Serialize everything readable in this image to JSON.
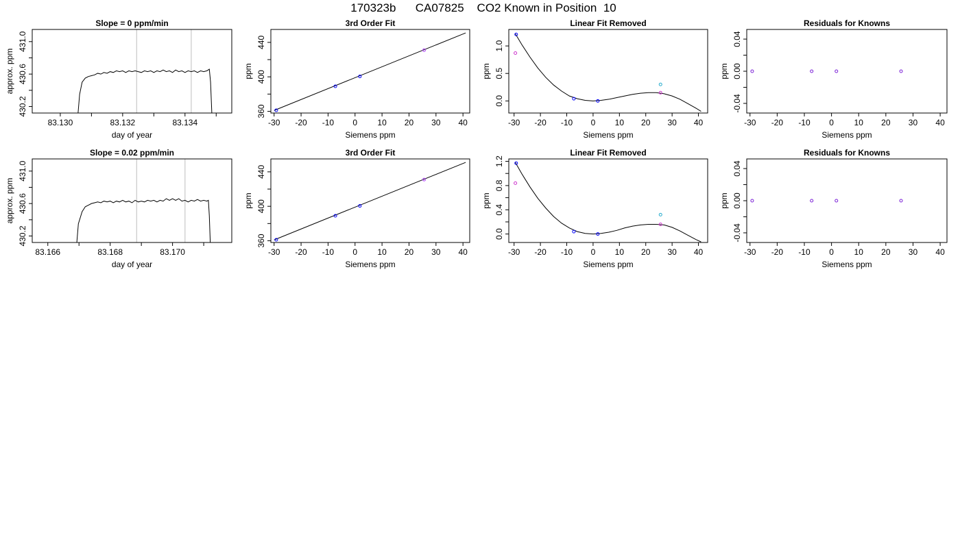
{
  "page_title": "170323b      CA07825    CO2 Known in Position  10",
  "chart_data": [
    {
      "type": "line",
      "title": "Slope =  0  ppm/min",
      "xlabel": "day of year",
      "ylabel": "approx. ppm",
      "xlim": [
        83.1291,
        83.1355
      ],
      "ylim": [
        430.12,
        431.15
      ],
      "xticks": [
        83.13,
        83.131,
        83.132,
        83.133,
        83.134,
        83.135
      ],
      "xtick_labels": [
        "83.130",
        "",
        "83.132",
        "",
        "83.134",
        ""
      ],
      "yticks": [
        430.2,
        430.4,
        430.6,
        430.8,
        431.0
      ],
      "ytick_labels": [
        "430.2",
        "",
        "430.6",
        "",
        "431.0"
      ],
      "vlines": [
        83.13245,
        83.1342
      ],
      "series": [
        {
          "values": [
            [
              83.13057,
              430.12
            ],
            [
              83.13062,
              430.35
            ],
            [
              83.1307,
              430.5
            ],
            [
              83.1308,
              430.55
            ],
            [
              83.1309,
              430.57
            ],
            [
              83.131,
              430.58
            ],
            [
              83.1311,
              430.59
            ],
            [
              83.1312,
              430.61
            ],
            [
              83.1313,
              430.6
            ],
            [
              83.1314,
              430.62
            ],
            [
              83.1315,
              430.61
            ],
            [
              83.1316,
              430.63
            ],
            [
              83.1317,
              430.62
            ],
            [
              83.1318,
              430.64
            ],
            [
              83.1319,
              430.63
            ],
            [
              83.132,
              430.64
            ],
            [
              83.1321,
              430.62
            ],
            [
              83.1322,
              430.64
            ],
            [
              83.1323,
              430.63
            ],
            [
              83.1324,
              430.64
            ],
            [
              83.1325,
              430.63
            ],
            [
              83.1326,
              430.62
            ],
            [
              83.1327,
              430.64
            ],
            [
              83.1328,
              430.63
            ],
            [
              83.1329,
              430.64
            ],
            [
              83.133,
              430.62
            ],
            [
              83.1331,
              430.64
            ],
            [
              83.1332,
              430.63
            ],
            [
              83.1333,
              430.65
            ],
            [
              83.1334,
              430.63
            ],
            [
              83.1335,
              430.64
            ],
            [
              83.1336,
              430.62
            ],
            [
              83.1337,
              430.65
            ],
            [
              83.1338,
              430.63
            ],
            [
              83.1339,
              430.64
            ],
            [
              83.134,
              430.62
            ],
            [
              83.1341,
              430.64
            ],
            [
              83.1342,
              430.63
            ],
            [
              83.1343,
              430.64
            ],
            [
              83.1344,
              430.62
            ],
            [
              83.1345,
              430.64
            ],
            [
              83.1346,
              430.63
            ],
            [
              83.1347,
              430.64
            ],
            [
              83.13478,
              430.66
            ],
            [
              83.13482,
              430.5
            ],
            [
              83.13486,
              430.12
            ]
          ]
        }
      ]
    },
    {
      "type": "scatter",
      "title": "3rd Order Fit",
      "xlabel": "Siemens ppm",
      "ylabel": "ppm",
      "xlim": [
        -31.2,
        42.5
      ],
      "ylim": [
        358,
        455
      ],
      "xticks": [
        -30,
        -20,
        -10,
        0,
        10,
        20,
        30,
        40
      ],
      "xtick_labels": [
        "-30",
        "-20",
        "-10",
        "0",
        "10",
        "20",
        "30",
        "40"
      ],
      "yticks": [
        360,
        380,
        400,
        420,
        440
      ],
      "ytick_labels": [
        "360",
        "",
        "400",
        "",
        "440"
      ],
      "curve": {
        "x": [
          -30,
          41
        ],
        "y": [
          361,
          451
        ]
      },
      "series": [
        {
          "color": "#0000ff",
          "x": [
            -29.2,
            -7.3,
            1.8
          ],
          "y": [
            361.2,
            389.0,
            400.5
          ]
        },
        {
          "color": "#b040ff",
          "x": [
            25.6
          ],
          "y": [
            431.0
          ]
        }
      ]
    },
    {
      "type": "scatter",
      "title": "Linear Fit Removed",
      "xlabel": "Siemens ppm",
      "ylabel": "ppm",
      "xlim": [
        -32.0,
        43.5
      ],
      "ylim": [
        -0.22,
        1.3
      ],
      "xticks": [
        -30,
        -20,
        -10,
        0,
        10,
        20,
        30,
        40
      ],
      "xtick_labels": [
        "-30",
        "-20",
        "-10",
        "0",
        "10",
        "20",
        "30",
        "40"
      ],
      "yticks": [
        0.0,
        0.5,
        1.0
      ],
      "ytick_labels": [
        "0.0",
        "0.5",
        "1.0"
      ],
      "curve": {
        "x": [
          -29.5,
          -27,
          -24,
          -21,
          -18,
          -15,
          -12,
          -9,
          -6,
          -3,
          0,
          3,
          6,
          9,
          12,
          15,
          18,
          21,
          24,
          27,
          30,
          33,
          36,
          39,
          41
        ],
        "y": [
          1.22,
          1.02,
          0.8,
          0.6,
          0.43,
          0.29,
          0.18,
          0.09,
          0.04,
          0.01,
          0.0,
          0.01,
          0.03,
          0.06,
          0.09,
          0.12,
          0.14,
          0.15,
          0.15,
          0.13,
          0.09,
          0.03,
          -0.05,
          -0.13,
          -0.19
        ]
      },
      "series": [
        {
          "color": "#0000ff",
          "x": [
            -29.2,
            -7.3,
            1.8
          ],
          "y": [
            1.21,
            0.04,
            0.0
          ]
        },
        {
          "color": "#cc33cc",
          "x": [
            -29.5,
            25.6
          ],
          "y": [
            0.87,
            0.15
          ]
        },
        {
          "color": "#22aacc",
          "x": [
            25.6
          ],
          "y": [
            0.3
          ]
        }
      ]
    },
    {
      "type": "scatter",
      "title": "Residuals for Knowns",
      "xlabel": "Siemens ppm",
      "ylabel": "ppm",
      "xlim": [
        -31.2,
        42.5
      ],
      "ylim": [
        -0.052,
        0.052
      ],
      "xticks": [
        -30,
        -20,
        -10,
        0,
        10,
        20,
        30,
        40
      ],
      "xtick_labels": [
        "-30",
        "-20",
        "-10",
        "0",
        "10",
        "20",
        "30",
        "40"
      ],
      "yticks": [
        -0.04,
        -0.02,
        0.0,
        0.02,
        0.04
      ],
      "ytick_labels": [
        "-0.04",
        "",
        "0.00",
        "",
        "0.04"
      ],
      "series": [
        {
          "color": "#7a1fd6",
          "x": [
            -29.2,
            -7.3,
            1.8,
            25.6
          ],
          "y": [
            0,
            0,
            0,
            0
          ]
        }
      ]
    },
    {
      "type": "line",
      "title": "Slope =  0.02  ppm/min",
      "xlabel": "day of year",
      "ylabel": "approx. ppm",
      "xlim": [
        83.1655,
        83.1719
      ],
      "ylim": [
        430.12,
        431.15
      ],
      "xticks": [
        83.166,
        83.167,
        83.168,
        83.169,
        83.17,
        83.171
      ],
      "xtick_labels": [
        "83.166",
        "",
        "83.168",
        "",
        "83.170",
        ""
      ],
      "yticks": [
        430.2,
        430.4,
        430.6,
        430.8,
        431.0
      ],
      "ytick_labels": [
        "430.2",
        "",
        "430.6",
        "",
        "431.0"
      ],
      "vlines": [
        83.16885,
        83.1704
      ],
      "series": [
        {
          "values": [
            [
              83.16693,
              430.12
            ],
            [
              83.16698,
              430.35
            ],
            [
              83.1671,
              430.5
            ],
            [
              83.1672,
              430.56
            ],
            [
              83.1673,
              430.58
            ],
            [
              83.1674,
              430.6
            ],
            [
              83.1675,
              430.61
            ],
            [
              83.1676,
              430.62
            ],
            [
              83.1677,
              430.61
            ],
            [
              83.1678,
              430.63
            ],
            [
              83.1679,
              430.62
            ],
            [
              83.168,
              430.63
            ],
            [
              83.1681,
              430.61
            ],
            [
              83.1682,
              430.63
            ],
            [
              83.1683,
              430.62
            ],
            [
              83.1684,
              430.64
            ],
            [
              83.1685,
              430.62
            ],
            [
              83.1686,
              430.63
            ],
            [
              83.1687,
              430.61
            ],
            [
              83.1688,
              430.64
            ],
            [
              83.1689,
              430.62
            ],
            [
              83.169,
              430.63
            ],
            [
              83.1691,
              430.62
            ],
            [
              83.1692,
              430.64
            ],
            [
              83.1693,
              430.63
            ],
            [
              83.1694,
              430.64
            ],
            [
              83.1695,
              430.62
            ],
            [
              83.1696,
              430.64
            ],
            [
              83.1697,
              430.63
            ],
            [
              83.1698,
              430.66
            ],
            [
              83.1699,
              430.64
            ],
            [
              83.17,
              430.66
            ],
            [
              83.1701,
              430.64
            ],
            [
              83.1702,
              430.66
            ],
            [
              83.1703,
              430.63
            ],
            [
              83.1704,
              430.64
            ],
            [
              83.1705,
              430.62
            ],
            [
              83.1706,
              430.64
            ],
            [
              83.1707,
              430.63
            ],
            [
              83.1708,
              430.65
            ],
            [
              83.1709,
              430.63
            ],
            [
              83.171,
              430.64
            ],
            [
              83.1711,
              430.63
            ],
            [
              83.17115,
              430.64
            ],
            [
              83.17118,
              430.45
            ],
            [
              83.17121,
              430.12
            ]
          ]
        }
      ]
    },
    {
      "type": "scatter",
      "title": "3rd Order Fit",
      "xlabel": "Siemens ppm",
      "ylabel": "ppm",
      "xlim": [
        -31.2,
        42.5
      ],
      "ylim": [
        358,
        455
      ],
      "xticks": [
        -30,
        -20,
        -10,
        0,
        10,
        20,
        30,
        40
      ],
      "xtick_labels": [
        "-30",
        "-20",
        "-10",
        "0",
        "10",
        "20",
        "30",
        "40"
      ],
      "yticks": [
        360,
        380,
        400,
        420,
        440
      ],
      "ytick_labels": [
        "360",
        "",
        "400",
        "",
        "440"
      ],
      "curve": {
        "x": [
          -30,
          41
        ],
        "y": [
          361,
          451
        ]
      },
      "series": [
        {
          "color": "#0000ff",
          "x": [
            -29.2,
            -7.3,
            1.8
          ],
          "y": [
            361.2,
            389.0,
            400.5
          ]
        },
        {
          "color": "#b040ff",
          "x": [
            25.6
          ],
          "y": [
            431.0
          ]
        }
      ]
    },
    {
      "type": "scatter",
      "title": "Linear Fit Removed",
      "xlabel": "Siemens ppm",
      "ylabel": "ppm",
      "xlim": [
        -32.0,
        43.5
      ],
      "ylim": [
        -0.14,
        1.24
      ],
      "xticks": [
        -30,
        -20,
        -10,
        0,
        10,
        20,
        30,
        40
      ],
      "xtick_labels": [
        "-30",
        "-20",
        "-10",
        "0",
        "10",
        "20",
        "30",
        "40"
      ],
      "yticks": [
        0.0,
        0.2,
        0.4,
        0.6,
        0.8,
        1.0,
        1.2
      ],
      "ytick_labels": [
        "0.0",
        "0.4",
        "0.8",
        "1.2"
      ],
      "ytick_label_values": [
        0.0,
        0.4,
        0.8,
        1.2
      ],
      "curve": {
        "x": [
          -29.5,
          -27,
          -24,
          -21,
          -18,
          -15,
          -12,
          -9,
          -6,
          -3,
          0,
          3,
          6,
          9,
          12,
          15,
          18,
          21,
          24,
          27,
          30,
          33,
          36,
          39,
          41
        ],
        "y": [
          1.18,
          0.99,
          0.78,
          0.59,
          0.43,
          0.29,
          0.18,
          0.1,
          0.04,
          0.01,
          0.0,
          0.01,
          0.03,
          0.06,
          0.1,
          0.13,
          0.15,
          0.16,
          0.16,
          0.15,
          0.11,
          0.05,
          -0.02,
          -0.09,
          -0.13
        ]
      },
      "series": [
        {
          "color": "#0000ff",
          "x": [
            -29.2,
            -7.3,
            1.8
          ],
          "y": [
            1.17,
            0.04,
            0.0
          ]
        },
        {
          "color": "#cc33cc",
          "x": [
            -29.5,
            25.6
          ],
          "y": [
            0.84,
            0.16
          ]
        },
        {
          "color": "#22aacc",
          "x": [
            25.6
          ],
          "y": [
            0.32
          ]
        }
      ]
    },
    {
      "type": "scatter",
      "title": "Residuals for Knowns",
      "xlabel": "Siemens ppm",
      "ylabel": "ppm",
      "xlim": [
        -31.2,
        42.5
      ],
      "ylim": [
        -0.052,
        0.052
      ],
      "xticks": [
        -30,
        -20,
        -10,
        0,
        10,
        20,
        30,
        40
      ],
      "xtick_labels": [
        "-30",
        "-20",
        "-10",
        "0",
        "10",
        "20",
        "30",
        "40"
      ],
      "yticks": [
        -0.04,
        -0.02,
        0.0,
        0.02,
        0.04
      ],
      "ytick_labels": [
        "-0.04",
        "",
        "0.00",
        "",
        "0.04"
      ],
      "series": [
        {
          "color": "#7a1fd6",
          "x": [
            -29.2,
            -7.3,
            1.8,
            25.6
          ],
          "y": [
            0,
            0,
            0,
            0
          ]
        }
      ]
    }
  ]
}
